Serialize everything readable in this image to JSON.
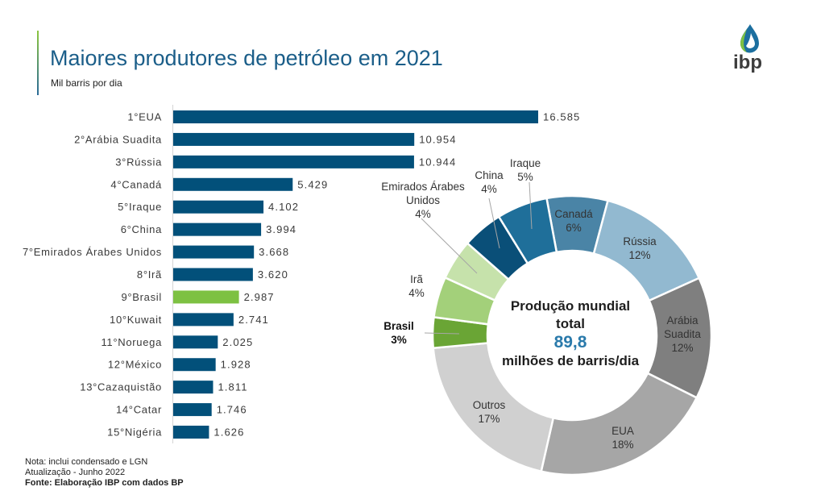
{
  "header": {
    "logo_text": "ibp"
  },
  "colors": {
    "title": "#1b5e89",
    "accent_top": "#8cc63e",
    "accent_bottom": "#2a6a98",
    "logo_green": "#7dc142",
    "logo_blue": "#1c6f9f",
    "logo_text": "#3d3d3d",
    "leader_line": "#a6a6a6"
  },
  "footer": {
    "notes": [
      "Nota: inclui condensado e LGN",
      "Atualização - Junho 2022",
      "Fonte: Elaboração IBP com dados BP"
    ]
  },
  "chart_data": [
    {
      "type": "bar",
      "orientation": "horizontal",
      "title": "Maiores produtores de petróleo em 2021",
      "subtitle": "Mil barris por dia",
      "xlabel": "",
      "ylabel": "",
      "categories": [
        "1°EUA",
        "2°Arábia Suadita",
        "3°Rússia",
        "4°Canadá",
        "5°Iraque",
        "6°China",
        "7°Emirados Árabes Unidos",
        "8°Irã",
        "9°Brasil",
        "10°Kuwait",
        "11°Noruega",
        "12°México",
        "13°Cazaquistão",
        "14°Catar",
        "15°Nigéria"
      ],
      "values": [
        16585,
        10954,
        10944,
        5429,
        4102,
        3994,
        3668,
        3620,
        2987,
        2741,
        2025,
        1928,
        1811,
        1746,
        1626
      ],
      "value_labels": [
        "16.585",
        "10.954",
        "10.944",
        "5.429",
        "4.102",
        "3.994",
        "3.668",
        "3.620",
        "2.987",
        "2.741",
        "2.025",
        "1.928",
        "1.811",
        "1.746",
        "1.626"
      ],
      "xlim": [
        0,
        16585
      ],
      "grid": false,
      "legend": "none",
      "bar_color": "#02507a",
      "highlight_index": 8,
      "highlight_color": "#7dc142"
    },
    {
      "type": "pie",
      "variant": "donut",
      "categories": [
        "Canadá",
        "Rússia",
        "Arábia Suadita",
        "EUA",
        "Outros",
        "Brasil",
        "Irã",
        "Emirados Árabes Unidos",
        "China",
        "Iraque"
      ],
      "values": [
        6,
        12,
        12,
        18,
        17,
        3,
        4,
        4,
        4,
        5
      ],
      "value_labels": [
        "6%",
        "12%",
        "12%",
        "18%",
        "17%",
        "3%",
        "4%",
        "4%",
        "4%",
        "5%"
      ],
      "colors": [
        "#4a84a6",
        "#92b9d0",
        "#7f7f7f",
        "#a6a6a6",
        "#d0d0d0",
        "#6aa535",
        "#a3d07a",
        "#c6e2ab",
        "#0a4f78",
        "#1f6f9a"
      ],
      "legend": "none",
      "highlight_index": 5,
      "center": {
        "title": "Produção mundial total",
        "value": "89,8",
        "unit": "milhões de barris/dia",
        "value_color": "#2a7aab"
      }
    }
  ]
}
